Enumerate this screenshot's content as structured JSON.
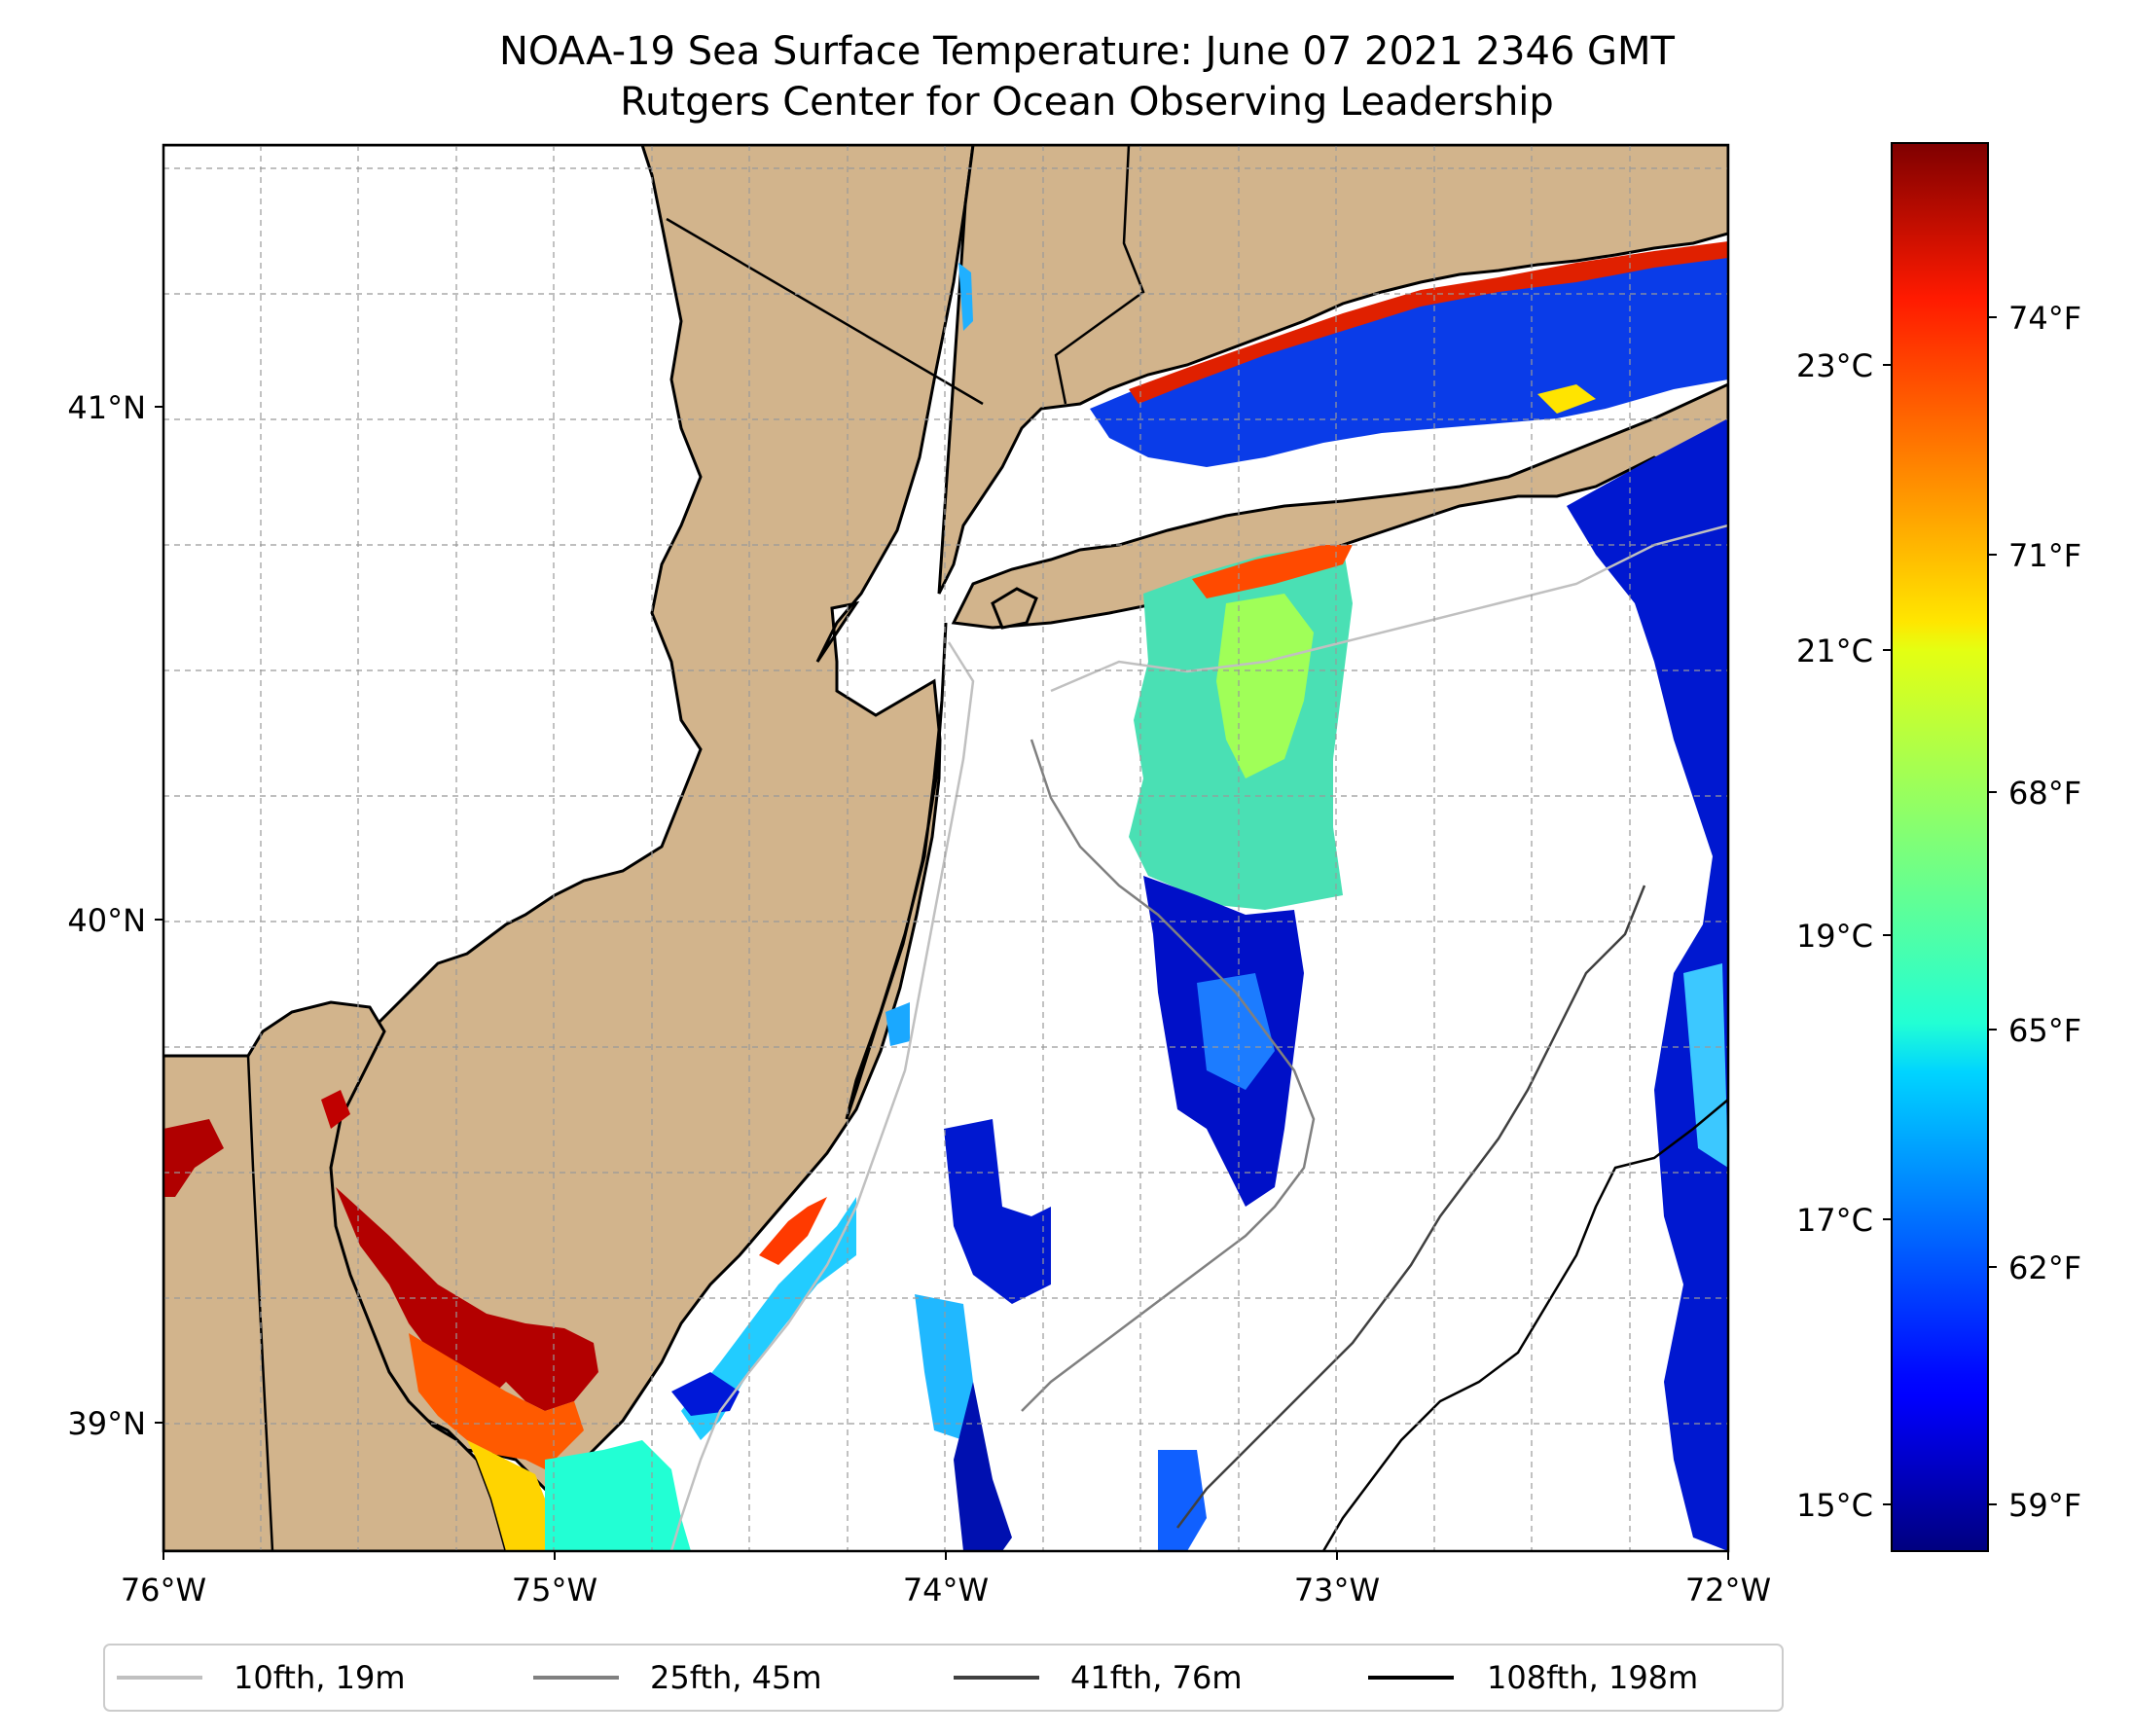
{
  "title": {
    "line1": "NOAA-19 Sea Surface Temperature: June 07 2021 2346 GMT",
    "line2": "Rutgers Center for Ocean Observing Leadership"
  },
  "map": {
    "lon_range": [
      -76.0,
      -72.0
    ],
    "lat_range": [
      38.75,
      41.55
    ],
    "land_color": "#d2b48c",
    "gridlines": true,
    "lon_ticks": [
      {
        "value": -76,
        "label": "76°W"
      },
      {
        "value": -75,
        "label": "75°W"
      },
      {
        "value": -74,
        "label": "74°W"
      },
      {
        "value": -73,
        "label": "73°W"
      },
      {
        "value": -72,
        "label": "72°W"
      }
    ],
    "lat_ticks": [
      {
        "value": 41,
        "label": "41°N"
      },
      {
        "value": 40,
        "label": "40°N"
      },
      {
        "value": 39,
        "label": "39°N"
      }
    ]
  },
  "colorbar": {
    "colormap": "jet",
    "celsius_ticks": [
      {
        "value": 15,
        "label": "15°C"
      },
      {
        "value": 17,
        "label": "17°C"
      },
      {
        "value": 19,
        "label": "19°C"
      },
      {
        "value": 21,
        "label": "21°C"
      },
      {
        "value": 23,
        "label": "23°C"
      }
    ],
    "fahrenheit_ticks": [
      {
        "value": 59,
        "label": "59°F"
      },
      {
        "value": 62,
        "label": "62°F"
      },
      {
        "value": 65,
        "label": "65°F"
      },
      {
        "value": 68,
        "label": "68°F"
      },
      {
        "value": 71,
        "label": "71°F"
      },
      {
        "value": 74,
        "label": "74°F"
      }
    ]
  },
  "legend": {
    "placement": "bottom",
    "items": [
      {
        "label": "10fth, 19m",
        "color": "#c0c0c0"
      },
      {
        "label": "25fth, 45m",
        "color": "#808080"
      },
      {
        "label": "41fth, 76m",
        "color": "#404040"
      },
      {
        "label": "108fth, 198m",
        "color": "#000000"
      }
    ]
  }
}
